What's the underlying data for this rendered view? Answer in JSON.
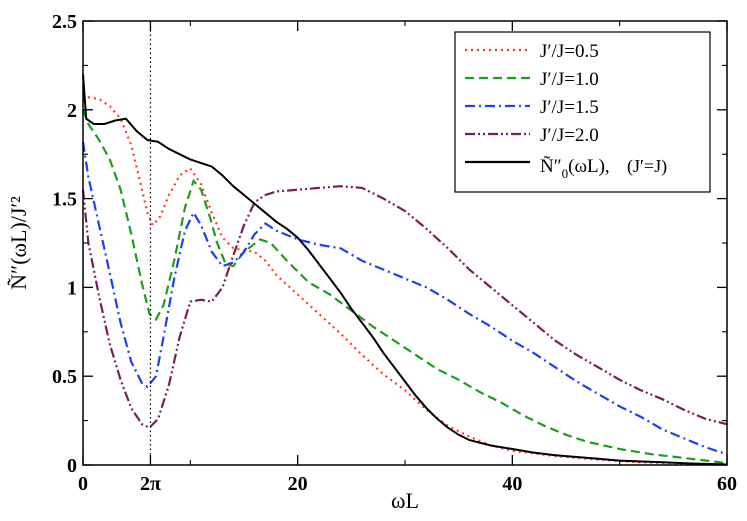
{
  "chart_data": {
    "type": "line",
    "title": "",
    "xlabel": "ωL",
    "ylabel": "Ñ″(ωL)/J′²",
    "xlim": [
      0,
      60
    ],
    "ylim": [
      0,
      2.5
    ],
    "x_ticks": [
      {
        "value": 0,
        "label": "0"
      },
      {
        "value": 6.2832,
        "label": "2π"
      },
      {
        "value": 20,
        "label": "20"
      },
      {
        "value": 40,
        "label": "40"
      },
      {
        "value": 60,
        "label": "60"
      }
    ],
    "y_ticks": [
      {
        "value": 0,
        "label": "0"
      },
      {
        "value": 0.5,
        "label": "0.5"
      },
      {
        "value": 1,
        "label": "1"
      },
      {
        "value": 1.5,
        "label": "1.5"
      },
      {
        "value": 2,
        "label": "2"
      },
      {
        "value": 2.5,
        "label": "2.5"
      }
    ],
    "reference_line": {
      "x": 6.2832,
      "label": "2π"
    },
    "legend_position": "top-right",
    "series": [
      {
        "name": "J′/J=0.5",
        "color": "#ff3b1f",
        "dash": "dotted",
        "points": [
          [
            0,
            2.05
          ],
          [
            0.5,
            2.07
          ],
          [
            1.5,
            2.06
          ],
          [
            2.5,
            2.02
          ],
          [
            3.5,
            1.95
          ],
          [
            4.5,
            1.8
          ],
          [
            5.3,
            1.6
          ],
          [
            6.0,
            1.42
          ],
          [
            6.5,
            1.35
          ],
          [
            7.2,
            1.4
          ],
          [
            8.0,
            1.52
          ],
          [
            9.0,
            1.63
          ],
          [
            10.0,
            1.67
          ],
          [
            11.0,
            1.58
          ],
          [
            12.0,
            1.42
          ],
          [
            13.0,
            1.28
          ],
          [
            14.0,
            1.22
          ],
          [
            15.0,
            1.21
          ],
          [
            16.0,
            1.2
          ],
          [
            17.0,
            1.15
          ],
          [
            18.0,
            1.07
          ],
          [
            20,
            0.96
          ],
          [
            22,
            0.85
          ],
          [
            24,
            0.74
          ],
          [
            26,
            0.62
          ],
          [
            28,
            0.51
          ],
          [
            30,
            0.42
          ],
          [
            32,
            0.31
          ],
          [
            34,
            0.22
          ],
          [
            36,
            0.16
          ],
          [
            38,
            0.11
          ],
          [
            40,
            0.08
          ],
          [
            44,
            0.05
          ],
          [
            48,
            0.03
          ],
          [
            52,
            0.015
          ],
          [
            56,
            0.008
          ],
          [
            60,
            0.003
          ]
        ]
      },
      {
        "name": "J′/J=1.0",
        "color": "#1e9e1e",
        "dash": "dashed",
        "points": [
          [
            0,
            2.0
          ],
          [
            0.5,
            1.92
          ],
          [
            1.5,
            1.83
          ],
          [
            2.5,
            1.72
          ],
          [
            3.5,
            1.55
          ],
          [
            4.5,
            1.3
          ],
          [
            5.5,
            1.02
          ],
          [
            6.2,
            0.85
          ],
          [
            6.8,
            0.82
          ],
          [
            7.5,
            0.9
          ],
          [
            8.5,
            1.15
          ],
          [
            9.5,
            1.45
          ],
          [
            10.3,
            1.6
          ],
          [
            11.0,
            1.55
          ],
          [
            11.8,
            1.4
          ],
          [
            12.5,
            1.25
          ],
          [
            13.3,
            1.13
          ],
          [
            14.0,
            1.12
          ],
          [
            15.0,
            1.2
          ],
          [
            16.5,
            1.27
          ],
          [
            17.5,
            1.25
          ],
          [
            19,
            1.15
          ],
          [
            21,
            1.03
          ],
          [
            23,
            0.96
          ],
          [
            25,
            0.87
          ],
          [
            27,
            0.78
          ],
          [
            29,
            0.7
          ],
          [
            31,
            0.62
          ],
          [
            33,
            0.54
          ],
          [
            35,
            0.48
          ],
          [
            37,
            0.41
          ],
          [
            39,
            0.35
          ],
          [
            41,
            0.28
          ],
          [
            43,
            0.22
          ],
          [
            45,
            0.17
          ],
          [
            47,
            0.13
          ],
          [
            50,
            0.09
          ],
          [
            53,
            0.06
          ],
          [
            56,
            0.04
          ],
          [
            60,
            0.01
          ]
        ]
      },
      {
        "name": "J′/J=1.5",
        "color": "#1f3ff5",
        "dash": "dashdot",
        "points": [
          [
            0,
            1.82
          ],
          [
            0.5,
            1.62
          ],
          [
            1.5,
            1.35
          ],
          [
            2.5,
            1.08
          ],
          [
            3.5,
            0.8
          ],
          [
            4.5,
            0.58
          ],
          [
            5.5,
            0.46
          ],
          [
            6.0,
            0.44
          ],
          [
            6.8,
            0.5
          ],
          [
            7.5,
            0.72
          ],
          [
            8.5,
            1.05
          ],
          [
            9.5,
            1.32
          ],
          [
            10.3,
            1.42
          ],
          [
            11.0,
            1.35
          ],
          [
            12,
            1.2
          ],
          [
            13,
            1.12
          ],
          [
            14,
            1.14
          ],
          [
            15,
            1.2
          ],
          [
            16,
            1.3
          ],
          [
            17,
            1.36
          ],
          [
            18,
            1.32
          ],
          [
            20,
            1.27
          ],
          [
            22,
            1.24
          ],
          [
            24,
            1.22
          ],
          [
            26,
            1.15
          ],
          [
            28,
            1.1
          ],
          [
            30,
            1.05
          ],
          [
            32,
            1.0
          ],
          [
            34,
            0.93
          ],
          [
            36,
            0.85
          ],
          [
            38,
            0.78
          ],
          [
            40,
            0.7
          ],
          [
            42,
            0.63
          ],
          [
            44,
            0.55
          ],
          [
            46,
            0.47
          ],
          [
            48,
            0.4
          ],
          [
            50,
            0.33
          ],
          [
            52,
            0.27
          ],
          [
            54,
            0.2
          ],
          [
            56,
            0.15
          ],
          [
            58,
            0.1
          ],
          [
            60,
            0.06
          ]
        ]
      },
      {
        "name": "J′/J=2.0",
        "color": "#7a1f55",
        "dash": "dashdotdot",
        "points": [
          [
            0,
            1.55
          ],
          [
            0.5,
            1.25
          ],
          [
            1.5,
            0.95
          ],
          [
            2.5,
            0.68
          ],
          [
            3.5,
            0.48
          ],
          [
            4.5,
            0.32
          ],
          [
            5.5,
            0.23
          ],
          [
            6.2,
            0.21
          ],
          [
            7.0,
            0.26
          ],
          [
            8.0,
            0.45
          ],
          [
            9.0,
            0.72
          ],
          [
            10.0,
            0.92
          ],
          [
            11,
            0.93
          ],
          [
            12,
            0.92
          ],
          [
            13,
            1.0
          ],
          [
            14,
            1.18
          ],
          [
            15,
            1.35
          ],
          [
            16,
            1.48
          ],
          [
            17,
            1.52
          ],
          [
            18,
            1.54
          ],
          [
            20,
            1.55
          ],
          [
            22,
            1.56
          ],
          [
            24,
            1.57
          ],
          [
            26,
            1.56
          ],
          [
            28,
            1.5
          ],
          [
            30,
            1.43
          ],
          [
            32,
            1.33
          ],
          [
            34,
            1.22
          ],
          [
            36,
            1.1
          ],
          [
            38,
            1.0
          ],
          [
            40,
            0.9
          ],
          [
            42,
            0.8
          ],
          [
            44,
            0.7
          ],
          [
            46,
            0.62
          ],
          [
            48,
            0.55
          ],
          [
            50,
            0.48
          ],
          [
            52,
            0.42
          ],
          [
            54,
            0.37
          ],
          [
            56,
            0.31
          ],
          [
            58,
            0.26
          ],
          [
            60,
            0.23
          ]
        ]
      },
      {
        "name": "Ñ₀″(ωL),   (J′=J)",
        "legend_main": "Ñ″",
        "legend_sub": "0",
        "legend_arg": "(ωL),",
        "legend_note": "(J′=J)",
        "color": "#000000",
        "dash": "solid",
        "points": [
          [
            0,
            2.2
          ],
          [
            0.3,
            1.95
          ],
          [
            1,
            1.92
          ],
          [
            2,
            1.92
          ],
          [
            3,
            1.94
          ],
          [
            4,
            1.95
          ],
          [
            5,
            1.88
          ],
          [
            6,
            1.83
          ],
          [
            7,
            1.82
          ],
          [
            8,
            1.78
          ],
          [
            9,
            1.75
          ],
          [
            10,
            1.72
          ],
          [
            11,
            1.7
          ],
          [
            12,
            1.68
          ],
          [
            13,
            1.63
          ],
          [
            14,
            1.57
          ],
          [
            15,
            1.52
          ],
          [
            16,
            1.47
          ],
          [
            17,
            1.42
          ],
          [
            18,
            1.37
          ],
          [
            19,
            1.33
          ],
          [
            20,
            1.28
          ],
          [
            21,
            1.21
          ],
          [
            22,
            1.13
          ],
          [
            23,
            1.05
          ],
          [
            24,
            0.97
          ],
          [
            25,
            0.88
          ],
          [
            26,
            0.8
          ],
          [
            27,
            0.72
          ],
          [
            28,
            0.63
          ],
          [
            29,
            0.55
          ],
          [
            30,
            0.47
          ],
          [
            31,
            0.39
          ],
          [
            32,
            0.32
          ],
          [
            33,
            0.26
          ],
          [
            34,
            0.21
          ],
          [
            35,
            0.17
          ],
          [
            36,
            0.14
          ],
          [
            38,
            0.11
          ],
          [
            40,
            0.09
          ],
          [
            42,
            0.07
          ],
          [
            44,
            0.055
          ],
          [
            46,
            0.045
          ],
          [
            48,
            0.035
          ],
          [
            50,
            0.025
          ],
          [
            54,
            0.015
          ],
          [
            57,
            0.008
          ],
          [
            60,
            0.003
          ]
        ]
      }
    ]
  }
}
